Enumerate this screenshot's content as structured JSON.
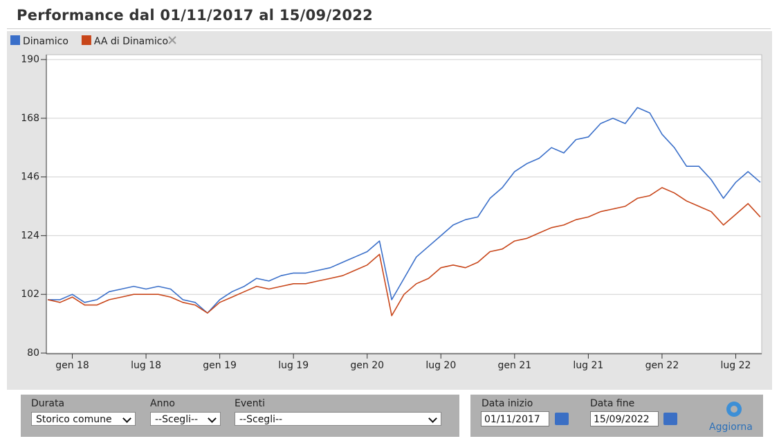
{
  "chart_data": {
    "type": "line",
    "title": "Performance dal 01/11/2017 al 15/09/2022",
    "x": [
      "2017-11",
      "2017-12",
      "2018-01",
      "2018-02",
      "2018-03",
      "2018-04",
      "2018-05",
      "2018-06",
      "2018-07",
      "2018-08",
      "2018-09",
      "2018-10",
      "2018-11",
      "2018-12",
      "2019-01",
      "2019-02",
      "2019-03",
      "2019-04",
      "2019-05",
      "2019-06",
      "2019-07",
      "2019-08",
      "2019-09",
      "2019-10",
      "2019-11",
      "2019-12",
      "2020-01",
      "2020-02",
      "2020-03",
      "2020-04",
      "2020-05",
      "2020-06",
      "2020-07",
      "2020-08",
      "2020-09",
      "2020-10",
      "2020-11",
      "2020-12",
      "2021-01",
      "2021-02",
      "2021-03",
      "2021-04",
      "2021-05",
      "2021-06",
      "2021-07",
      "2021-08",
      "2021-09",
      "2021-10",
      "2021-11",
      "2021-12",
      "2022-01",
      "2022-02",
      "2022-03",
      "2022-04",
      "2022-05",
      "2022-06",
      "2022-07",
      "2022-08",
      "2022-09"
    ],
    "series": [
      {
        "name": "Dinamico",
        "color": "#3a6fc9",
        "values": [
          100,
          100,
          102,
          99,
          100,
          103,
          104,
          105,
          104,
          105,
          104,
          100,
          99,
          95,
          100,
          103,
          105,
          108,
          107,
          109,
          110,
          110,
          111,
          112,
          114,
          116,
          118,
          122,
          100,
          108,
          116,
          120,
          124,
          128,
          130,
          131,
          138,
          142,
          148,
          151,
          153,
          157,
          155,
          160,
          161,
          166,
          168,
          166,
          172,
          170,
          162,
          157,
          150,
          150,
          145,
          138,
          144,
          148,
          144
        ]
      },
      {
        "name": "AA di Dinamico",
        "color": "#c8461a",
        "values": [
          100,
          99,
          101,
          98,
          98,
          100,
          101,
          102,
          102,
          102,
          101,
          99,
          98,
          95,
          99,
          101,
          103,
          105,
          104,
          105,
          106,
          106,
          107,
          108,
          109,
          111,
          113,
          117,
          94,
          102,
          106,
          108,
          112,
          113,
          112,
          114,
          118,
          119,
          122,
          123,
          125,
          127,
          128,
          130,
          131,
          133,
          134,
          135,
          138,
          139,
          142,
          140,
          137,
          135,
          133,
          128,
          132,
          136,
          131
        ]
      }
    ],
    "xlim": [
      "2017-11",
      "2022-09"
    ],
    "xticks": [
      {
        "value": "2018-01",
        "label": "gen 18"
      },
      {
        "value": "2018-07",
        "label": "lug 18"
      },
      {
        "value": "2019-01",
        "label": "gen 19"
      },
      {
        "value": "2019-07",
        "label": "lug 19"
      },
      {
        "value": "2020-01",
        "label": "gen 20"
      },
      {
        "value": "2020-07",
        "label": "lug 20"
      },
      {
        "value": "2021-01",
        "label": "gen 21"
      },
      {
        "value": "2021-07",
        "label": "lug 21"
      },
      {
        "value": "2022-01",
        "label": "gen 22"
      },
      {
        "value": "2022-07",
        "label": "lug 22"
      }
    ],
    "ylim": [
      80,
      190
    ],
    "yticks": [
      80,
      102,
      124,
      146,
      168,
      190
    ],
    "grid": true
  },
  "controls": {
    "durata": {
      "label": "Durata",
      "value": "Storico comune"
    },
    "anno": {
      "label": "Anno",
      "value": "--Scegli--"
    },
    "eventi": {
      "label": "Eventi",
      "value": "--Scegli--"
    },
    "data_inizio": {
      "label": "Data inizio",
      "value": "01/11/2017"
    },
    "data_fine": {
      "label": "Data fine",
      "value": "15/09/2022"
    },
    "aggiorna": "Aggiorna"
  }
}
